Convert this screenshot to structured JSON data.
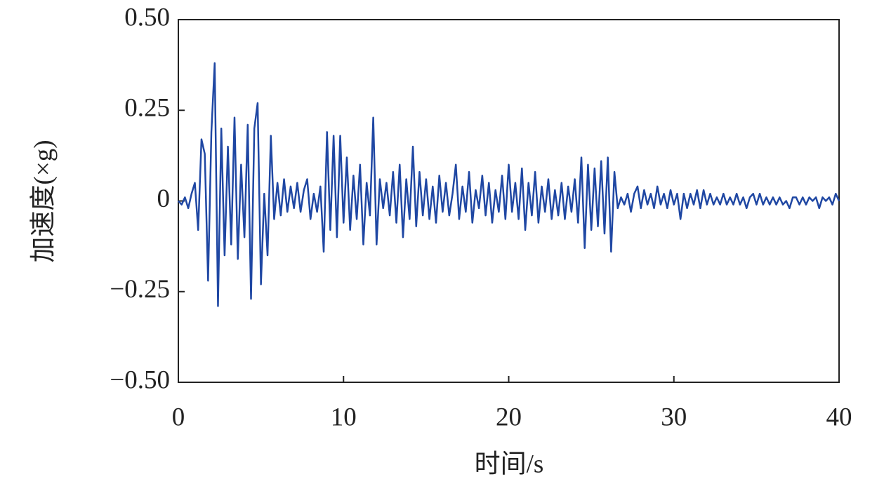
{
  "chart_data": {
    "type": "line",
    "xlabel": "时间/s",
    "ylabel": "加速度(×g)",
    "x": [
      0,
      0.2,
      0.4,
      0.6,
      0.8,
      1.0,
      1.2,
      1.4,
      1.6,
      1.8,
      2.0,
      2.2,
      2.4,
      2.6,
      2.8,
      3.0,
      3.2,
      3.4,
      3.6,
      3.8,
      4.0,
      4.2,
      4.4,
      4.6,
      4.8,
      5.0,
      5.2,
      5.4,
      5.6,
      5.8,
      6.0,
      6.2,
      6.4,
      6.6,
      6.8,
      7.0,
      7.2,
      7.4,
      7.6,
      7.8,
      8.0,
      8.2,
      8.4,
      8.6,
      8.8,
      9.0,
      9.2,
      9.4,
      9.6,
      9.8,
      10.0,
      10.2,
      10.4,
      10.6,
      10.8,
      11.0,
      11.2,
      11.4,
      11.6,
      11.8,
      12.0,
      12.2,
      12.4,
      12.6,
      12.8,
      13.0,
      13.2,
      13.4,
      13.6,
      13.8,
      14.0,
      14.2,
      14.4,
      14.6,
      14.8,
      15.0,
      15.2,
      15.4,
      15.6,
      15.8,
      16.0,
      16.2,
      16.4,
      16.6,
      16.8,
      17.0,
      17.2,
      17.4,
      17.6,
      17.8,
      18.0,
      18.2,
      18.4,
      18.6,
      18.8,
      19.0,
      19.2,
      19.4,
      19.6,
      19.8,
      20.0,
      20.2,
      20.4,
      20.6,
      20.8,
      21.0,
      21.2,
      21.4,
      21.6,
      21.8,
      22.0,
      22.2,
      22.4,
      22.6,
      22.8,
      23.0,
      23.2,
      23.4,
      23.6,
      23.8,
      24.0,
      24.2,
      24.4,
      24.6,
      24.8,
      25.0,
      25.2,
      25.4,
      25.6,
      25.8,
      26.0,
      26.2,
      26.4,
      26.6,
      26.8,
      27.0,
      27.2,
      27.4,
      27.6,
      27.8,
      28.0,
      28.2,
      28.4,
      28.6,
      28.8,
      29.0,
      29.2,
      29.4,
      29.6,
      29.8,
      30.0,
      30.2,
      30.4,
      30.6,
      30.8,
      31.0,
      31.2,
      31.4,
      31.6,
      31.8,
      32.0,
      32.2,
      32.4,
      32.6,
      32.8,
      33.0,
      33.2,
      33.4,
      33.6,
      33.8,
      34.0,
      34.2,
      34.4,
      34.6,
      34.8,
      35.0,
      35.2,
      35.4,
      35.6,
      35.8,
      36.0,
      36.2,
      36.4,
      36.6,
      36.8,
      37.0,
      37.2,
      37.4,
      37.6,
      37.8,
      38.0,
      38.2,
      38.4,
      38.6,
      38.8,
      39.0,
      39.2,
      39.4,
      39.6,
      39.8,
      40.0
    ],
    "series": [
      {
        "color": "#1f47a3",
        "values": [
          0,
          -0.01,
          0.01,
          -0.02,
          0.02,
          0.05,
          -0.08,
          0.17,
          0.13,
          -0.22,
          0.19,
          0.38,
          -0.29,
          0.2,
          -0.15,
          0.15,
          -0.12,
          0.23,
          -0.16,
          0.1,
          -0.1,
          0.21,
          -0.27,
          0.2,
          0.27,
          -0.23,
          0.02,
          -0.15,
          0.18,
          -0.05,
          0.05,
          -0.04,
          0.06,
          -0.03,
          0.04,
          -0.02,
          0.05,
          -0.03,
          0.03,
          0.06,
          -0.05,
          0.02,
          -0.03,
          0.04,
          -0.14,
          0.19,
          -0.08,
          0.18,
          -0.1,
          0.18,
          -0.06,
          0.12,
          -0.08,
          0.07,
          -0.05,
          0.1,
          -0.12,
          0.05,
          -0.04,
          0.23,
          -0.12,
          0.06,
          -0.02,
          0.05,
          -0.04,
          0.08,
          -0.06,
          0.1,
          -0.1,
          0.06,
          -0.05,
          0.15,
          -0.07,
          0.08,
          -0.04,
          0.06,
          -0.05,
          0.04,
          -0.06,
          0.07,
          -0.03,
          0.05,
          -0.04,
          0.02,
          0.1,
          -0.05,
          0.04,
          -0.03,
          0.08,
          -0.06,
          0.03,
          -0.02,
          0.07,
          -0.04,
          0.05,
          -0.06,
          0.03,
          -0.03,
          0.07,
          -0.05,
          0.1,
          -0.03,
          0.05,
          -0.05,
          0.09,
          -0.08,
          0.05,
          -0.04,
          0.08,
          -0.06,
          0.04,
          -0.03,
          0.06,
          -0.05,
          0.03,
          -0.04,
          0.05,
          -0.05,
          0.04,
          -0.03,
          0.06,
          -0.06,
          0.12,
          -0.13,
          0.1,
          -0.08,
          0.09,
          -0.07,
          0.11,
          -0.09,
          0.12,
          -0.14,
          0.08,
          -0.02,
          0.01,
          -0.01,
          0.02,
          -0.03,
          0.02,
          0.04,
          -0.02,
          0.03,
          -0.01,
          0.02,
          -0.02,
          0.04,
          -0.01,
          0.02,
          -0.02,
          0.03,
          -0.01,
          0.02,
          -0.05,
          0.02,
          -0.02,
          0.02,
          -0.01,
          0.03,
          -0.02,
          0.03,
          -0.01,
          0.02,
          -0.01,
          0.01,
          -0.01,
          0.02,
          -0.01,
          0.01,
          -0.01,
          0.02,
          -0.01,
          0.01,
          -0.02,
          0.01,
          0.02,
          -0.01,
          0.02,
          -0.01,
          0.01,
          -0.01,
          0.01,
          -0.01,
          0.01,
          -0.01,
          0,
          -0.02,
          0.01,
          0.01,
          -0.01,
          0.01,
          -0.01,
          0.01,
          0,
          0.01,
          -0.02,
          0.01,
          0,
          0.01,
          -0.01,
          0.02,
          0
        ]
      }
    ],
    "xlim": [
      0,
      40
    ],
    "xticks": [
      0,
      10,
      20,
      30,
      40
    ],
    "ylim": [
      -0.5,
      0.5
    ],
    "yticks": [
      {
        "value": 0.5,
        "label": "0.50"
      },
      {
        "value": 0.25,
        "label": "0.25"
      },
      0,
      {
        "value": -0.25,
        "label": "−0.25"
      },
      {
        "value": -0.5,
        "label": "−0.50"
      }
    ],
    "grid": false
  }
}
